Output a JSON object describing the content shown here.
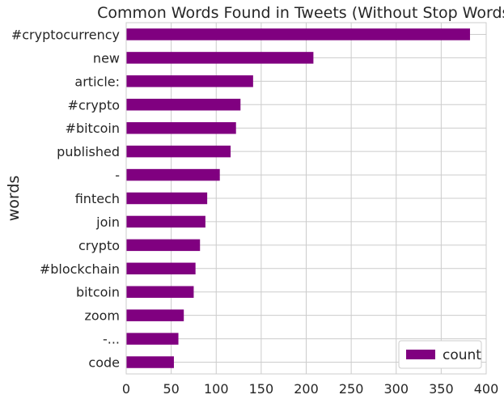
{
  "chart_data": {
    "type": "bar",
    "orientation": "horizontal",
    "title": "Common Words Found in Tweets (Without Stop Words)",
    "xlabel": "",
    "ylabel": "words",
    "xlim": [
      0,
      400
    ],
    "xticks": [
      0,
      50,
      100,
      150,
      200,
      250,
      300,
      350,
      400
    ],
    "grid": true,
    "legend_position": "bottom-right",
    "categories": [
      "#cryptocurrency",
      "new",
      "article:",
      "#crypto",
      "#bitcoin",
      "published",
      "-",
      "fintech",
      "join",
      "crypto",
      "#blockchain",
      "bitcoin",
      "zoom",
      "-...",
      "code"
    ],
    "series": [
      {
        "name": "count",
        "color": "#800080",
        "values": [
          382,
          208,
          141,
          127,
          122,
          116,
          104,
          90,
          88,
          82,
          77,
          75,
          64,
          58,
          53
        ]
      }
    ]
  }
}
